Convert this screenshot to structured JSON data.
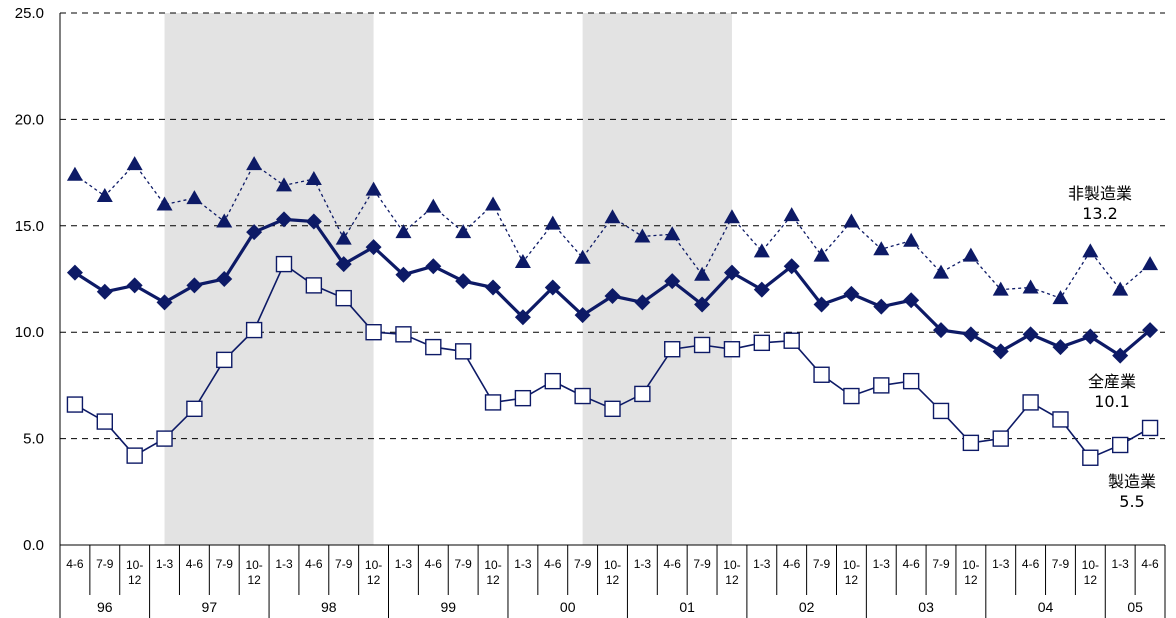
{
  "chart_data": {
    "type": "line",
    "ylim": [
      0,
      25
    ],
    "yticks": [
      "0.0",
      "5.0",
      "10.0",
      "15.0",
      "20.0",
      "25.0"
    ],
    "grid": "horizontal dashed",
    "x_quarters": [
      "4-6",
      "7-9",
      "10-12",
      "1-3",
      "4-6",
      "7-9",
      "10-12",
      "1-3",
      "4-6",
      "7-9",
      "10-12",
      "1-3",
      "4-6",
      "7-9",
      "10-12",
      "1-3",
      "4-6",
      "7-9",
      "10-12",
      "1-3",
      "4-6",
      "7-9",
      "10-12",
      "1-3",
      "4-6",
      "7-9",
      "10-12",
      "1-3",
      "4-6",
      "7-9",
      "10-12",
      "1-3",
      "4-6",
      "7-9",
      "10-12",
      "1-3",
      "4-6"
    ],
    "x_years": [
      {
        "label": "96",
        "start": 0,
        "end": 2
      },
      {
        "label": "97",
        "start": 3,
        "end": 6
      },
      {
        "label": "98",
        "start": 7,
        "end": 10
      },
      {
        "label": "99",
        "start": 11,
        "end": 14
      },
      {
        "label": "00",
        "start": 15,
        "end": 18
      },
      {
        "label": "01",
        "start": 19,
        "end": 22
      },
      {
        "label": "02",
        "start": 23,
        "end": 26
      },
      {
        "label": "03",
        "start": 27,
        "end": 30
      },
      {
        "label": "04",
        "start": 31,
        "end": 34
      },
      {
        "label": "05",
        "start": 35,
        "end": 36
      }
    ],
    "shaded_periods": [
      [
        4,
        11
      ],
      [
        18,
        23
      ]
    ],
    "series": [
      {
        "name": "非製造業",
        "end_label": "13.2",
        "marker": "triangle",
        "line": "dotted",
        "color": "#0d1a66",
        "values": [
          17.4,
          16.4,
          17.9,
          16.0,
          16.3,
          15.2,
          17.9,
          16.9,
          17.2,
          14.4,
          16.7,
          14.7,
          15.9,
          14.7,
          16.0,
          13.3,
          15.1,
          13.5,
          15.4,
          14.5,
          14.6,
          12.7,
          15.4,
          13.8,
          15.5,
          13.6,
          15.2,
          13.9,
          14.3,
          12.8,
          13.6,
          12.0,
          12.1,
          11.6,
          13.8,
          12.0,
          13.2
        ]
      },
      {
        "name": "全産業",
        "end_label": "10.1",
        "marker": "diamond",
        "line": "solid-bold",
        "color": "#0d1a66",
        "values": [
          12.8,
          11.9,
          12.2,
          11.4,
          12.2,
          12.5,
          14.7,
          15.3,
          15.2,
          13.2,
          14.0,
          12.7,
          13.1,
          12.4,
          12.1,
          10.7,
          12.1,
          10.8,
          11.7,
          11.4,
          12.4,
          11.3,
          12.8,
          12.0,
          13.1,
          11.3,
          11.8,
          11.2,
          11.5,
          10.1,
          9.9,
          9.1,
          9.9,
          9.3,
          9.8,
          8.9,
          10.1
        ]
      },
      {
        "name": "製造業",
        "end_label": "5.5",
        "marker": "square-open",
        "line": "solid",
        "color": "#0d1a66",
        "values": [
          6.6,
          5.8,
          4.2,
          5.0,
          6.4,
          8.7,
          10.1,
          13.2,
          12.2,
          11.6,
          10.0,
          9.9,
          9.3,
          9.1,
          6.7,
          6.9,
          7.7,
          7.0,
          6.4,
          7.1,
          9.2,
          9.4,
          9.2,
          9.5,
          9.6,
          8.0,
          7.0,
          7.5,
          7.7,
          6.3,
          4.8,
          5.0,
          6.7,
          5.9,
          4.1,
          4.7,
          5.5
        ]
      }
    ]
  }
}
